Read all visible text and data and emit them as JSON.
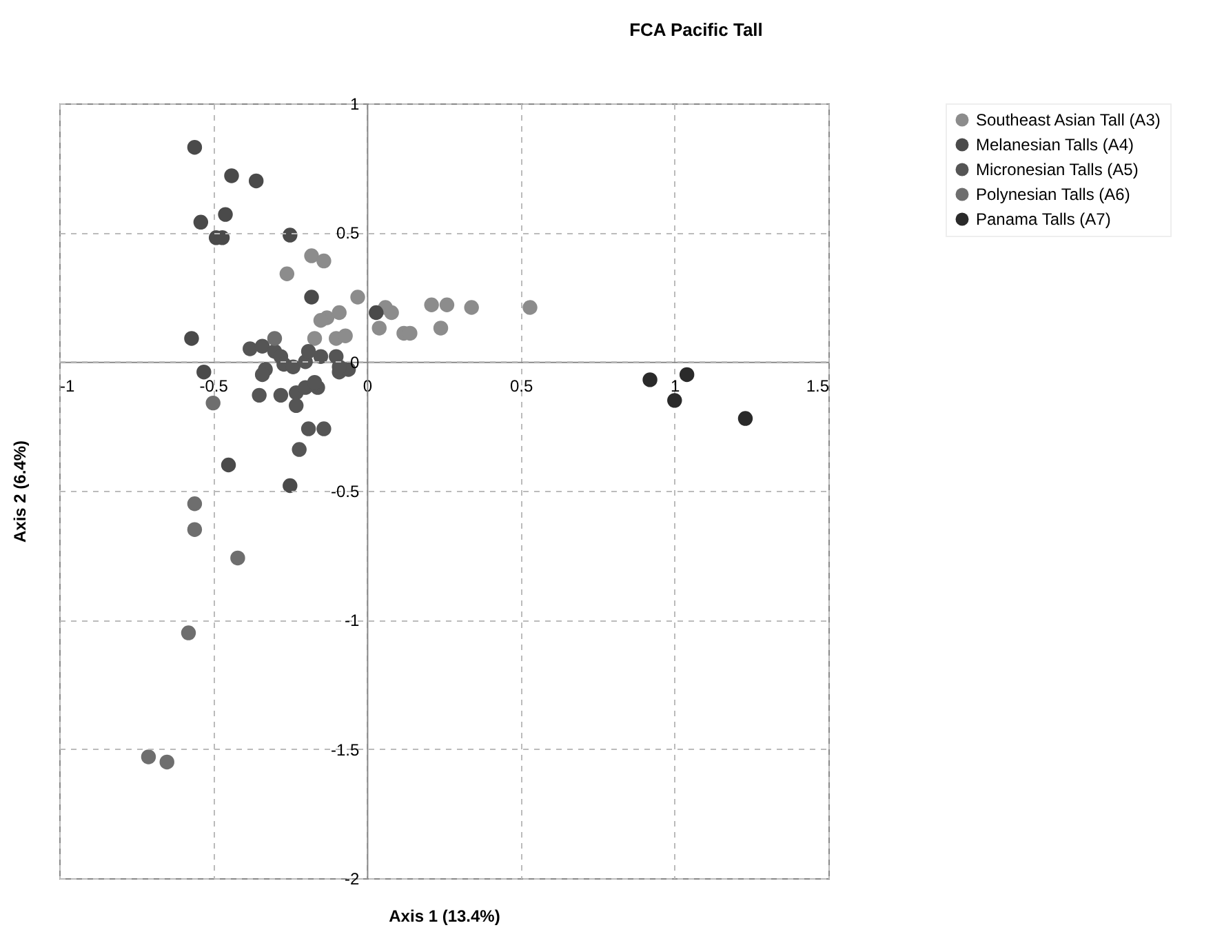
{
  "chart_data": {
    "type": "scatter",
    "title": "FCA Pacific Tall",
    "xlabel": "Axis 1 (13.4%)",
    "ylabel": "Axis 2 (6.4%)",
    "xlim": [
      -1,
      1.5
    ],
    "xticks": [
      -1,
      -0.5,
      0,
      0.5,
      1,
      1.5
    ],
    "ylim": [
      -2,
      1
    ],
    "yticks": [
      -2,
      -1.5,
      -1,
      -0.5,
      0,
      0.5,
      1
    ],
    "grid": true,
    "legend": "right",
    "marker": "circle",
    "series": [
      {
        "name": "Southeast Asian Tall (A3)",
        "color": "#8c8c8c",
        "x": [
          -0.26,
          -0.18,
          -0.14,
          -0.03,
          -0.13,
          -0.09,
          -0.15,
          -0.1,
          -0.17,
          0.06,
          0.08,
          0.04,
          0.12,
          0.14,
          0.21,
          0.26,
          0.34,
          0.53,
          0.24,
          -0.07
        ],
        "values": [
          0.34,
          0.41,
          0.39,
          0.25,
          0.17,
          0.19,
          0.16,
          0.09,
          0.09,
          0.21,
          0.19,
          0.13,
          0.11,
          0.11,
          0.22,
          0.22,
          0.21,
          0.21,
          0.13,
          0.1
        ]
      },
      {
        "name": "Melanesian Talls (A4)",
        "color": "#4a4a4a",
        "x": [
          -0.56,
          -0.44,
          -0.36,
          -0.46,
          -0.54,
          -0.49,
          -0.47,
          -0.25,
          -0.18,
          0.03,
          -0.57,
          -0.53,
          -0.45,
          -0.25
        ],
        "values": [
          0.83,
          0.72,
          0.7,
          0.57,
          0.54,
          0.48,
          0.48,
          0.49,
          0.25,
          0.19,
          0.09,
          -0.04,
          -0.4,
          -0.48
        ]
      },
      {
        "name": "Micronesian Talls (A5)",
        "color": "#555555",
        "x": [
          -0.38,
          -0.34,
          -0.3,
          -0.28,
          -0.27,
          -0.24,
          -0.2,
          -0.19,
          -0.15,
          -0.1,
          -0.09,
          -0.06,
          -0.33,
          -0.34,
          -0.35,
          -0.28,
          -0.23,
          -0.23,
          -0.2,
          -0.16,
          -0.17,
          -0.19,
          -0.14,
          -0.22,
          -0.09
        ],
        "values": [
          0.05,
          0.06,
          0.04,
          0.02,
          -0.01,
          -0.02,
          0,
          0.04,
          0.02,
          0.02,
          -0.04,
          -0.03,
          -0.03,
          -0.05,
          -0.13,
          -0.13,
          -0.12,
          -0.17,
          -0.1,
          -0.1,
          -0.08,
          -0.26,
          -0.26,
          -0.34,
          -0.02
        ]
      },
      {
        "name": "Polynesian Talls (A6)",
        "color": "#6e6e6e",
        "x": [
          -0.3,
          -0.5,
          -0.56,
          -0.56,
          -0.42,
          -0.58,
          -0.71,
          -0.65
        ],
        "values": [
          0.09,
          -0.16,
          -0.55,
          -0.65,
          -0.76,
          -1.05,
          -1.53,
          -1.55
        ]
      },
      {
        "name": "Panama Talls (A7)",
        "color": "#2a2a2a",
        "x": [
          0.92,
          1.04,
          1,
          1.23
        ],
        "values": [
          -0.07,
          -0.05,
          -0.15,
          -0.22
        ]
      }
    ]
  }
}
